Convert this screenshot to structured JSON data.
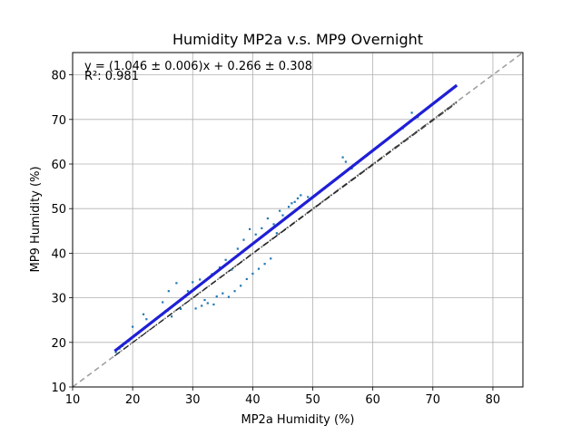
{
  "chart_data": {
    "type": "scatter",
    "title": "Humidity MP2a v.s. MP9 Overnight",
    "xlabel": "MP2a Humidity (%)",
    "ylabel": "MP9 Humidity (%)",
    "xlim": [
      10,
      85
    ],
    "ylim": [
      10,
      85
    ],
    "xticks": [
      "10",
      "20",
      "30",
      "40",
      "50",
      "60",
      "70",
      "80"
    ],
    "yticks": [
      "10",
      "20",
      "30",
      "40",
      "50",
      "60",
      "70",
      "80"
    ],
    "grid": true,
    "annotations": {
      "fit_equation": "y = (1.046 ± 0.006)x + 0.266 ± 0.308",
      "r_squared": "R²: 0.981"
    },
    "fit": {
      "slope": 1.046,
      "intercept": 0.266,
      "x_range": [
        17,
        74
      ],
      "color": "#1f1fd6"
    },
    "identity_line": {
      "slope": 1,
      "intercept": 0,
      "color": "#a0a0a0",
      "style": "dashed"
    },
    "reference_lines": [
      {
        "slope": 1.0,
        "intercept": 0,
        "x_range": [
          17,
          74
        ]
      },
      {
        "slope": 0.996,
        "intercept": 0.0,
        "x_range": [
          17,
          74
        ]
      }
    ],
    "point_color": "#1f77b4",
    "series": [
      {
        "x": [
          17.2,
          17.8,
          18.3,
          18.9,
          19.4,
          19.8,
          20.1,
          20.5,
          21.0,
          21.3,
          21.7,
          22.0,
          22.4,
          22.8,
          23.1,
          23.5,
          24.0,
          24.4,
          24.9,
          25.3,
          25.8,
          26.2,
          26.5,
          27.0,
          27.4,
          27.8,
          28.2,
          28.6,
          29.0,
          29.4,
          29.8,
          30.2,
          30.6,
          31.0,
          31.4,
          31.8,
          32.2,
          32.6,
          33.0,
          33.4,
          33.8,
          34.2,
          34.6,
          35.0,
          35.4,
          35.8,
          36.2,
          36.6,
          37.0,
          37.4,
          37.8,
          38.2,
          38.6,
          39.0,
          39.4,
          39.8,
          40.2,
          40.6,
          41.0,
          41.4,
          41.8,
          42.2,
          42.6,
          43.0,
          43.4,
          43.8,
          44.2,
          44.6,
          45.0,
          45.4,
          45.8,
          46.2,
          46.6,
          47.0,
          47.4,
          47.8,
          48.2,
          48.6,
          49.0,
          49.5,
          50.2,
          51.0,
          52.0,
          53.0,
          54.0,
          55.0,
          56.0,
          57.0,
          58.0,
          59.0,
          60.0,
          61.5,
          63.0,
          64.5,
          66.0,
          67.0,
          68.0,
          69.0,
          70.0,
          71.0,
          72.0,
          73.0,
          73.8,
          20.0,
          21.8,
          22.3,
          25.0,
          26.0,
          27.3,
          28.0,
          30.5,
          31.5,
          32.5,
          33.5,
          34.0,
          35.0,
          36.0,
          37.0,
          38.0,
          39.0,
          40.0,
          41.0,
          42.0,
          43.0,
          44.0,
          45.0,
          46.0,
          47.0,
          48.0,
          25.5,
          26.5,
          29.2,
          30.0,
          31.2,
          32.0,
          33.2,
          34.5,
          35.5,
          36.5,
          37.5,
          38.5,
          39.5,
          40.5,
          41.5,
          42.5,
          43.5,
          44.5,
          45.5,
          46.5,
          47.5,
          49.2,
          55.0,
          55.5,
          56.5,
          65.0,
          66.5,
          67.5
        ],
        "y": [
          17.8,
          18.6,
          19.2,
          19.9,
          20.4,
          20.9,
          21.3,
          21.6,
          22.1,
          22.5,
          22.9,
          23.2,
          23.7,
          24.1,
          24.5,
          24.8,
          25.3,
          25.7,
          26.2,
          26.7,
          27.1,
          27.6,
          27.9,
          28.4,
          28.9,
          29.3,
          29.7,
          30.2,
          30.6,
          31.0,
          31.4,
          31.8,
          32.3,
          32.7,
          33.1,
          33.5,
          33.9,
          34.4,
          34.8,
          35.2,
          35.6,
          36.0,
          36.5,
          36.9,
          37.3,
          37.7,
          38.1,
          38.6,
          39.0,
          39.4,
          39.8,
          40.2,
          40.7,
          41.1,
          41.5,
          41.9,
          42.3,
          42.8,
          43.2,
          43.6,
          44.0,
          44.4,
          44.8,
          45.3,
          45.7,
          46.1,
          46.5,
          46.9,
          47.3,
          47.8,
          48.2,
          48.6,
          49.0,
          49.4,
          49.8,
          50.3,
          50.7,
          51.1,
          51.5,
          52.0,
          52.8,
          53.6,
          54.6,
          55.7,
          56.7,
          57.8,
          58.8,
          59.9,
          60.9,
          61.9,
          63.0,
          64.6,
          66.2,
          67.7,
          69.3,
          70.3,
          71.4,
          72.4,
          73.5,
          74.5,
          75.6,
          76.6,
          77.5,
          23.5,
          26.3,
          25.2,
          29.0,
          31.5,
          33.3,
          27.5,
          27.6,
          28.2,
          28.8,
          28.5,
          30.3,
          31.0,
          30.2,
          31.5,
          32.7,
          34.2,
          35.4,
          36.5,
          37.6,
          38.8,
          44.5,
          48.5,
          50.4,
          51.5,
          53.0,
          27.0,
          25.8,
          31.5,
          33.5,
          34.1,
          29.5,
          35.3,
          36.8,
          38.5,
          36.3,
          41.0,
          43.0,
          45.4,
          44.2,
          45.6,
          47.8,
          46.5,
          49.5,
          48.0,
          51.2,
          52.3,
          52.6,
          61.5,
          60.5,
          59.0,
          68.0,
          71.5,
          70.5
        ]
      }
    ]
  }
}
